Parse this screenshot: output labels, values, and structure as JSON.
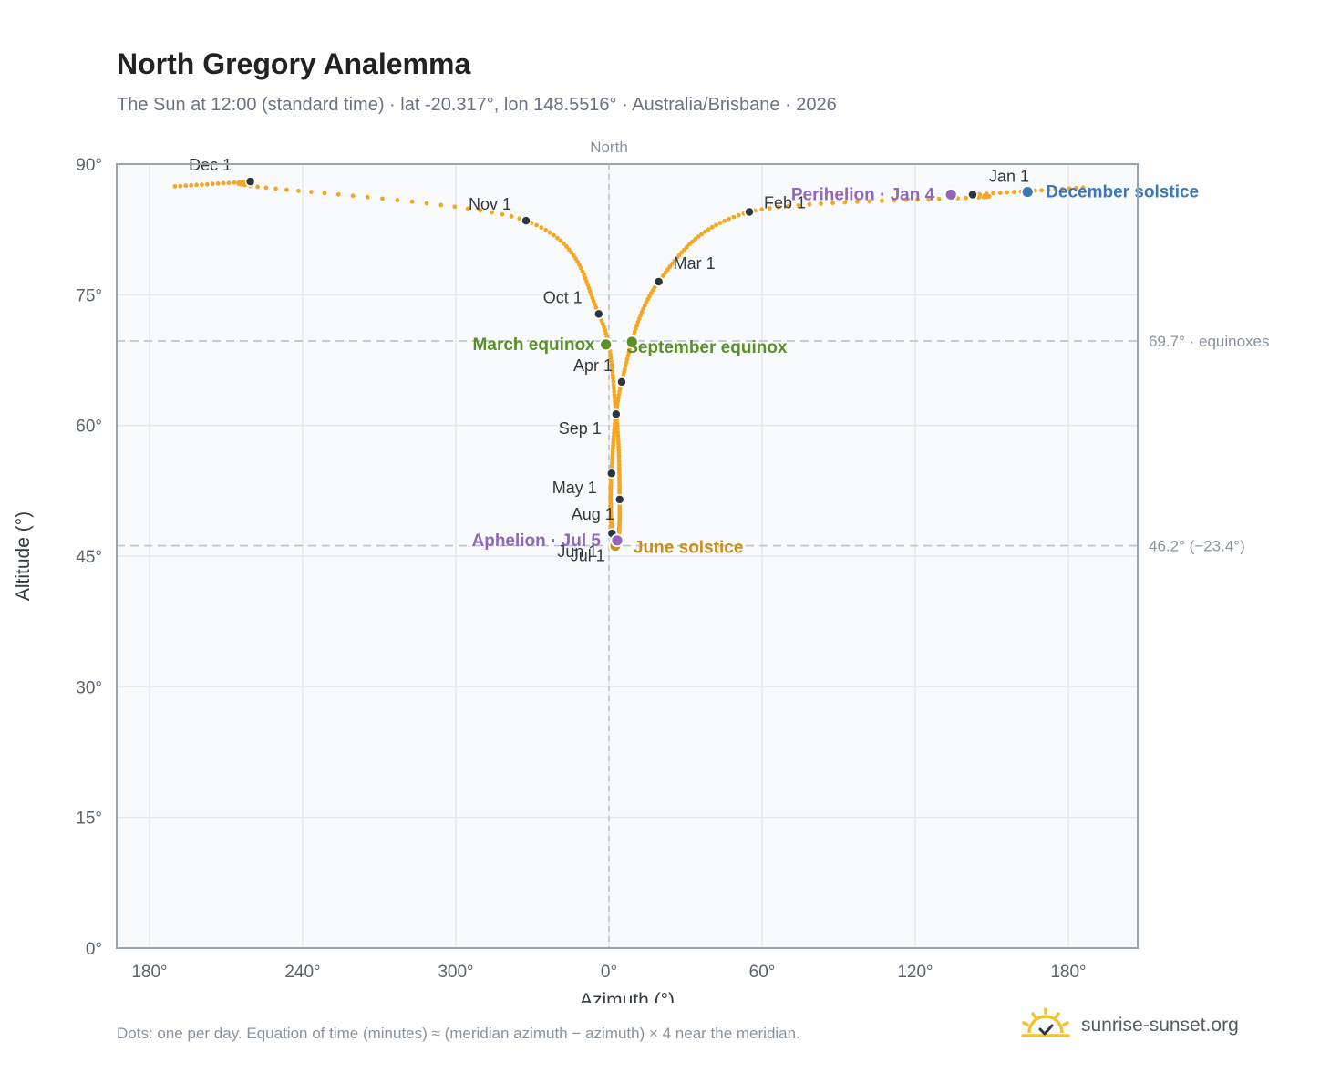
{
  "title": "North Gregory Analemma",
  "subtitle": "The Sun at 12:00 (standard time) · lat -20.317°, lon 148.5516° · Australia/Brisbane · 2026",
  "footnote": "Dots: one per day. Equation of time (minutes) ≈ (meridian azimuth − azimuth) × 4 near the meridian.",
  "brand": {
    "text": "sunrise-sunset.org",
    "icon": "sun-logo-icon"
  },
  "colors": {
    "path": "#f5a623",
    "month_dot": "#2d3540",
    "equinox": "#5a8f29",
    "june_solstice": "#c8901a",
    "december_solstice": "#3a78b8",
    "apsis": "#9167b8",
    "plot_bg": "#f8fafc",
    "grid": "#e5e9ee",
    "frame": "#9aa4ae",
    "reference": "#b9c3cb"
  },
  "chart_data": {
    "type": "scatter",
    "title": "North Gregory Analemma",
    "xlabel": "Azimuth (°)",
    "ylabel": "Altitude (°)",
    "x_ticks": [
      "180°",
      "240°",
      "300°",
      "0°",
      "60°",
      "120°",
      "180°"
    ],
    "y_ticks": [
      "0°",
      "15°",
      "30°",
      "45°",
      "60°",
      "75°",
      "90°"
    ],
    "ylim": [
      0,
      90
    ],
    "grid": true,
    "north_label": "North",
    "reference_lines": [
      {
        "altitude": 69.7,
        "label": "69.7° · equinoxes"
      },
      {
        "altitude": 46.2,
        "label": "46.2° (−23.4°)"
      }
    ],
    "month_points": [
      {
        "label": "Jan 1",
        "azimuth": 142.5,
        "altitude": 86.5
      },
      {
        "label": "Feb 1",
        "azimuth": 55.0,
        "altitude": 84.5
      },
      {
        "label": "Mar 1",
        "azimuth": 19.5,
        "altitude": 76.5
      },
      {
        "label": "Apr 1",
        "azimuth": 5.0,
        "altitude": 65.0
      },
      {
        "label": "May 1",
        "azimuth": 1.0,
        "altitude": 54.5
      },
      {
        "label": "Jun 1",
        "azimuth": 1.2,
        "altitude": 47.6
      },
      {
        "label": "Jul 1",
        "azimuth": 3.5,
        "altitude": 46.5
      },
      {
        "label": "Aug 1",
        "azimuth": 4.2,
        "altitude": 51.5
      },
      {
        "label": "Sep 1",
        "azimuth": 2.8,
        "altitude": 61.3
      },
      {
        "label": "Oct 1",
        "azimuth": 356.0,
        "altitude": 72.8
      },
      {
        "label": "Nov 1",
        "azimuth": 327.5,
        "altitude": 83.5
      },
      {
        "label": "Dec 1",
        "azimuth": 219.5,
        "altitude": 88.0
      }
    ],
    "events": [
      {
        "label": "March equinox",
        "azimuth": 358.8,
        "altitude": 69.3,
        "kind": "equinox"
      },
      {
        "label": "September equinox",
        "azimuth": 9.0,
        "altitude": 69.6,
        "kind": "equinox"
      },
      {
        "label": "June solstice",
        "azimuth": 2.5,
        "altitude": 46.2,
        "kind": "june"
      },
      {
        "label": "December solstice",
        "azimuth": 164.0,
        "altitude": 86.8,
        "kind": "december"
      },
      {
        "label": "Perihelion · Jan 4",
        "azimuth": 134.0,
        "altitude": 86.5,
        "kind": "apsis"
      },
      {
        "label": "Aphelion · Jul 5",
        "azimuth": 3.2,
        "altitude": 46.8,
        "kind": "apsis"
      }
    ]
  }
}
